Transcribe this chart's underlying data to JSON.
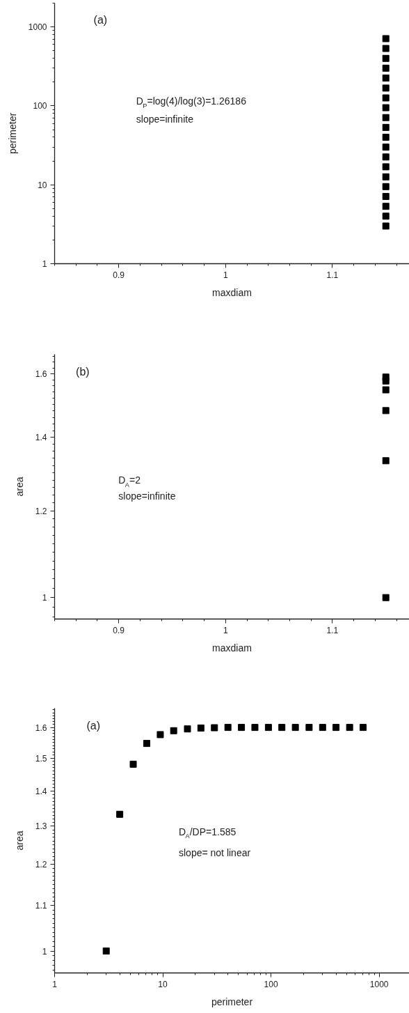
{
  "chart_data": [
    {
      "type": "scatter",
      "xlabel": "maxdiam",
      "ylabel": "perimeter",
      "log": "y",
      "marker": "square",
      "grid": false,
      "annotations": [
        "(a)",
        "D$_{P}$=log(4)/log(3)=1.26186",
        "slope=infinite"
      ],
      "xlim": [
        0.84,
        1.172
      ],
      "ylim": [
        1,
        2000
      ],
      "xticks": [
        0.9,
        1,
        1.1
      ],
      "yticks": [
        1,
        10,
        100,
        1000
      ],
      "series": [
        {
          "color": "#000000",
          "x": [
            1.15,
            1.15,
            1.15,
            1.15,
            1.15,
            1.15,
            1.15,
            1.15,
            1.15,
            1.15,
            1.15,
            1.15,
            1.15,
            1.15,
            1.15,
            1.15,
            1.15,
            1.15,
            1.15,
            1.15
          ],
          "values": [
            3,
            4,
            5.33,
            7.11,
            9.48,
            12.6,
            16.9,
            22.5,
            30,
            40,
            53.3,
            71,
            94.7,
            126,
            168,
            225,
            300,
            399,
            533,
            710
          ]
        }
      ]
    },
    {
      "type": "scatter",
      "xlabel": "maxdiam",
      "ylabel": "area",
      "log": "y",
      "marker": "square",
      "grid": false,
      "annotations": [
        "(b)",
        "D$_{A}$=2",
        "slope=infinite"
      ],
      "xlim": [
        0.84,
        1.172
      ],
      "ylim": [
        0.956,
        1.667
      ],
      "xticks": [
        0.9,
        1,
        1.1
      ],
      "yticks": [
        1,
        1.2,
        1.4,
        1.6
      ],
      "series": [
        {
          "color": "#000000",
          "x": [
            1.15,
            1.15,
            1.15,
            1.15,
            1.15,
            1.15
          ],
          "values": [
            1,
            1.333,
            1.481,
            1.547,
            1.576,
            1.589
          ]
        }
      ]
    },
    {
      "type": "scatter",
      "xlabel": "perimeter",
      "ylabel": "area",
      "log": "xy",
      "marker": "square",
      "grid": false,
      "annotations": [
        "(a)",
        "D$_{A}$/DP=1.585",
        "slope= not linear"
      ],
      "xlim": [
        1,
        1900
      ],
      "ylim": [
        0.955,
        1.666
      ],
      "xticks": [
        1,
        10,
        100,
        1000
      ],
      "yticks": [
        1,
        1.1,
        1.2,
        1.3,
        1.4,
        1.5,
        1.6
      ],
      "series": [
        {
          "color": "#000000",
          "x": [
            3,
            4,
            5.33,
            7.11,
            9.48,
            12.6,
            16.9,
            22.5,
            30,
            40,
            53.3,
            71,
            94.7,
            126,
            168,
            225,
            300,
            399,
            533,
            710
          ],
          "values": [
            1,
            1.333,
            1.481,
            1.547,
            1.576,
            1.589,
            1.595,
            1.598,
            1.599,
            1.6,
            1.6,
            1.6,
            1.6,
            1.6,
            1.6,
            1.6,
            1.6,
            1.6,
            1.6,
            1.6
          ]
        }
      ]
    }
  ]
}
